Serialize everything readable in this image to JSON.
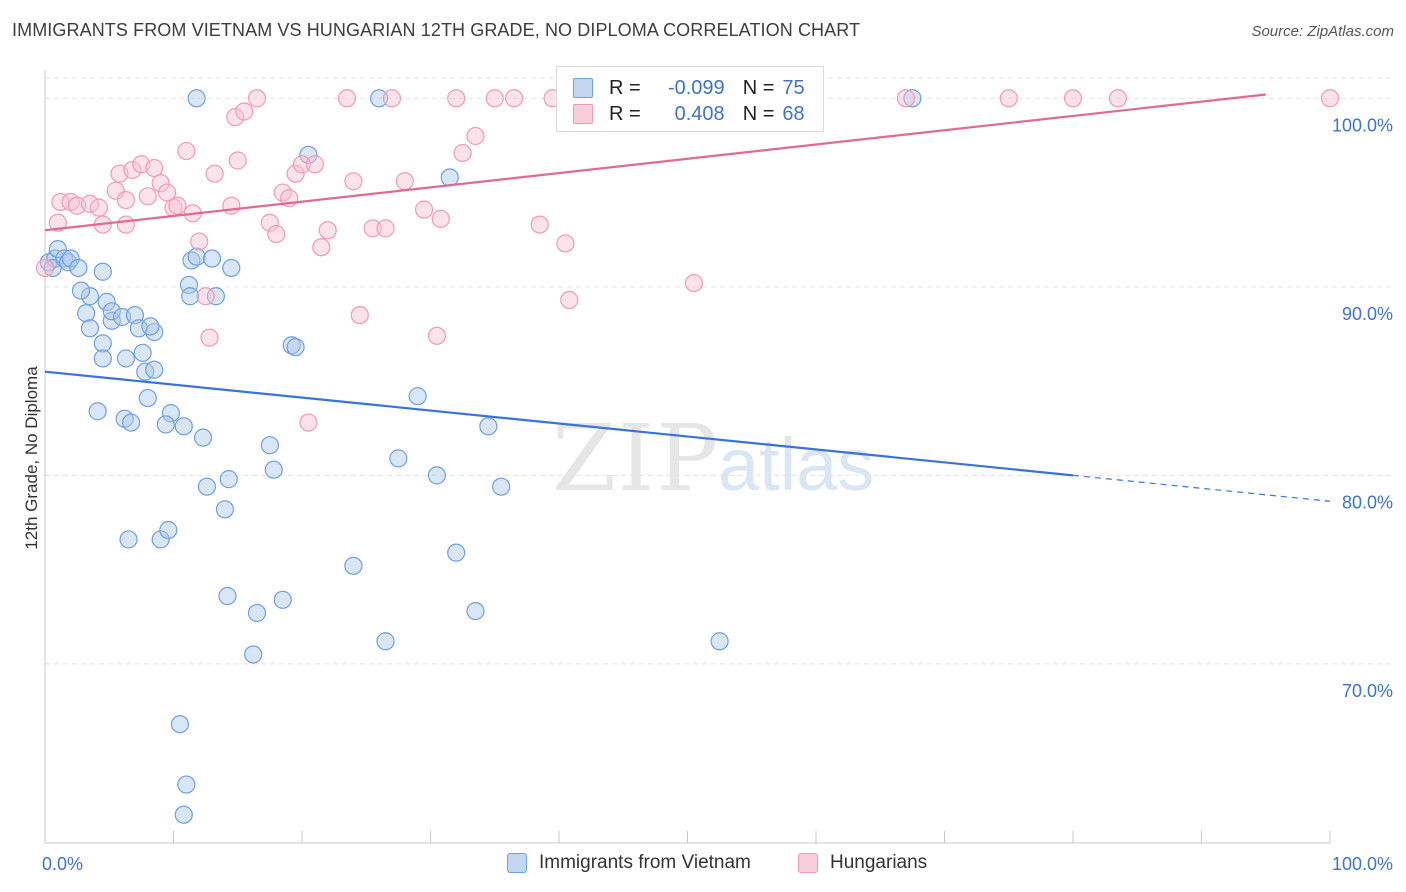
{
  "title": "IMMIGRANTS FROM VIETNAM VS HUNGARIAN 12TH GRADE, NO DIPLOMA CORRELATION CHART",
  "source": "Source: ZipAtlas.com",
  "watermark": {
    "zip": "ZIP",
    "atlas": "atlas"
  },
  "legend": {
    "r_label": "R =",
    "n_label": "N =",
    "rows": [
      {
        "r": "-0.099",
        "n": "75",
        "color": "#6fa0e0"
      },
      {
        "r": "0.408",
        "n": "68",
        "color": "#f29ab4"
      }
    ]
  },
  "chart_data": {
    "type": "scatter",
    "ylabel": "12th Grade, No Diploma",
    "x_ticks": [
      "0.0%",
      "100.0%"
    ],
    "y_ticks": [
      "100.0%",
      "90.0%",
      "80.0%",
      "70.0%"
    ],
    "xlim": [
      0,
      100
    ],
    "ylim": [
      60.5,
      101.5
    ],
    "y_tick_values": [
      100,
      90,
      80,
      70
    ],
    "grid": true,
    "legend_position": "bottom",
    "series": [
      {
        "name": "Immigrants from Vietnam",
        "color": "#6fa0e0",
        "line_color": "#3874d8",
        "trend": {
          "x0": 0,
          "y0": 85.5,
          "x1": 80,
          "y1": 80.0,
          "dash_to": 100
        },
        "points": [
          [
            0.3,
            91.3
          ],
          [
            0.8,
            91.5
          ],
          [
            0.6,
            91.0
          ],
          [
            1.0,
            92.0
          ],
          [
            1.5,
            91.5
          ],
          [
            1.8,
            91.3
          ],
          [
            2.0,
            91.5
          ],
          [
            2.6,
            91.0
          ],
          [
            3.5,
            89.5
          ],
          [
            2.8,
            89.8
          ],
          [
            3.2,
            88.6
          ],
          [
            3.5,
            87.8
          ],
          [
            4.5,
            90.8
          ],
          [
            4.8,
            89.2
          ],
          [
            4.5,
            87.0
          ],
          [
            4.5,
            86.2
          ],
          [
            5.2,
            88.2
          ],
          [
            5.2,
            88.7
          ],
          [
            6.0,
            88.4
          ],
          [
            6.3,
            86.2
          ],
          [
            7.0,
            88.5
          ],
          [
            7.3,
            87.8
          ],
          [
            7.6,
            86.5
          ],
          [
            7.8,
            85.5
          ],
          [
            8.5,
            87.6
          ],
          [
            8.2,
            87.9
          ],
          [
            8.5,
            85.6
          ],
          [
            8.0,
            84.1
          ],
          [
            4.1,
            83.4
          ],
          [
            6.2,
            83.0
          ],
          [
            6.7,
            82.8
          ],
          [
            9.8,
            83.3
          ],
          [
            9.4,
            82.7
          ],
          [
            11.2,
            90.1
          ],
          [
            11.3,
            89.5
          ],
          [
            11.4,
            91.4
          ],
          [
            11.8,
            91.6
          ],
          [
            13.0,
            91.5
          ],
          [
            13.3,
            89.5
          ],
          [
            10.8,
            82.6
          ],
          [
            12.3,
            82.0
          ],
          [
            12.6,
            79.4
          ],
          [
            14.3,
            79.8
          ],
          [
            14.0,
            78.2
          ],
          [
            17.5,
            81.6
          ],
          [
            17.8,
            80.3
          ],
          [
            19.2,
            86.9
          ],
          [
            19.5,
            86.8
          ],
          [
            20.5,
            97.0
          ],
          [
            29.0,
            84.2
          ],
          [
            27.5,
            80.9
          ],
          [
            30.5,
            80.0
          ],
          [
            31.5,
            95.8
          ],
          [
            34.5,
            82.6
          ],
          [
            35.5,
            79.4
          ],
          [
            32.0,
            75.9
          ],
          [
            6.5,
            76.6
          ],
          [
            9.0,
            76.6
          ],
          [
            9.6,
            77.1
          ],
          [
            14.2,
            73.6
          ],
          [
            16.5,
            72.7
          ],
          [
            18.5,
            73.4
          ],
          [
            16.2,
            70.5
          ],
          [
            24.0,
            75.2
          ],
          [
            26.5,
            71.2
          ],
          [
            33.5,
            72.8
          ],
          [
            52.5,
            71.2
          ],
          [
            10.5,
            66.8
          ],
          [
            11.0,
            63.6
          ],
          [
            10.8,
            62.0
          ],
          [
            11.8,
            100.0
          ],
          [
            26.0,
            100.0
          ],
          [
            42.5,
            100.0
          ],
          [
            67.5,
            100.0
          ],
          [
            14.5,
            91.0
          ]
        ]
      },
      {
        "name": "Hungarians",
        "color": "#f29ab4",
        "line_color": "#e06a92",
        "trend": {
          "x0": 0,
          "y0": 93.0,
          "x1": 95,
          "y1": 100.2
        },
        "points": [
          [
            0.0,
            91.0
          ],
          [
            1.0,
            93.4
          ],
          [
            1.2,
            94.5
          ],
          [
            2.0,
            94.5
          ],
          [
            2.5,
            94.3
          ],
          [
            3.5,
            94.4
          ],
          [
            4.2,
            94.2
          ],
          [
            4.5,
            93.3
          ],
          [
            5.5,
            95.1
          ],
          [
            5.8,
            96.0
          ],
          [
            6.3,
            94.6
          ],
          [
            6.3,
            93.3
          ],
          [
            6.8,
            96.2
          ],
          [
            7.5,
            96.5
          ],
          [
            8.0,
            94.8
          ],
          [
            8.5,
            96.3
          ],
          [
            9.0,
            95.5
          ],
          [
            9.5,
            95.0
          ],
          [
            10.0,
            94.2
          ],
          [
            10.3,
            94.3
          ],
          [
            11.0,
            97.2
          ],
          [
            11.5,
            93.9
          ],
          [
            12.0,
            92.4
          ],
          [
            12.5,
            89.5
          ],
          [
            12.8,
            87.3
          ],
          [
            13.2,
            96.0
          ],
          [
            14.5,
            94.3
          ],
          [
            15.0,
            96.7
          ],
          [
            14.8,
            99.0
          ],
          [
            15.5,
            99.3
          ],
          [
            16.5,
            100.0
          ],
          [
            17.5,
            93.4
          ],
          [
            18.0,
            92.8
          ],
          [
            18.5,
            95.0
          ],
          [
            19.0,
            94.7
          ],
          [
            19.5,
            96.0
          ],
          [
            20.0,
            96.5
          ],
          [
            20.5,
            82.8
          ],
          [
            21.0,
            96.5
          ],
          [
            21.5,
            92.1
          ],
          [
            22.0,
            93.0
          ],
          [
            23.5,
            100.0
          ],
          [
            24.0,
            95.6
          ],
          [
            24.5,
            88.5
          ],
          [
            25.5,
            93.1
          ],
          [
            26.5,
            93.1
          ],
          [
            27.0,
            100.0
          ],
          [
            28.0,
            95.6
          ],
          [
            29.5,
            94.1
          ],
          [
            30.5,
            87.4
          ],
          [
            30.8,
            93.6
          ],
          [
            32.0,
            100.0
          ],
          [
            32.5,
            97.1
          ],
          [
            33.5,
            98.0
          ],
          [
            35.0,
            100.0
          ],
          [
            36.5,
            100.0
          ],
          [
            38.5,
            93.3
          ],
          [
            39.5,
            100.0
          ],
          [
            40.5,
            92.3
          ],
          [
            40.8,
            89.3
          ],
          [
            50.0,
            100.0
          ],
          [
            52.5,
            100.0
          ],
          [
            67.0,
            100.0
          ],
          [
            75.0,
            100.0
          ],
          [
            80.0,
            100.0
          ],
          [
            83.5,
            100.0
          ],
          [
            100.0,
            100.0
          ],
          [
            50.5,
            90.2
          ]
        ]
      }
    ]
  }
}
